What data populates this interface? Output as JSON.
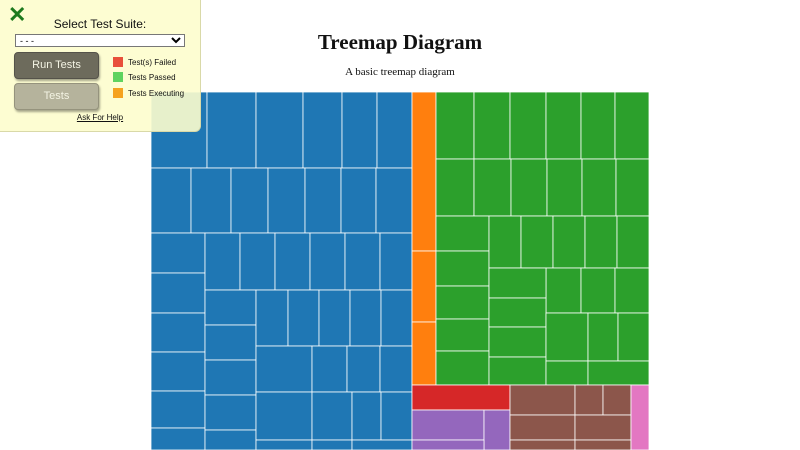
{
  "panel": {
    "close_icon": "close-x-icon",
    "suite_label": "Select Test Suite:",
    "suite_selected": "- - -",
    "run_button": "Run Tests",
    "tests_button": "Tests",
    "legend": [
      {
        "label": "Test(s) Failed",
        "color": "#e8503a"
      },
      {
        "label": "Tests Passed",
        "color": "#5fd35f"
      },
      {
        "label": "Tests Executing",
        "color": "#f5a21f"
      }
    ],
    "help_link": "Ask For Help"
  },
  "chart_data": {
    "type": "treemap",
    "title": "Treemap Diagram",
    "subtitle": "A basic treemap diagram",
    "groups": [
      {
        "color": "#1f77b4",
        "leaves": 70
      },
      {
        "color": "#ff7f0e",
        "leaves": 3
      },
      {
        "color": "#2ca02c",
        "leaves": 52
      },
      {
        "color": "#d62728",
        "leaves": 1
      },
      {
        "color": "#9467bd",
        "leaves": 3
      },
      {
        "color": "#8c564b",
        "leaves": 7
      },
      {
        "color": "#e377c2",
        "leaves": 1
      }
    ]
  }
}
